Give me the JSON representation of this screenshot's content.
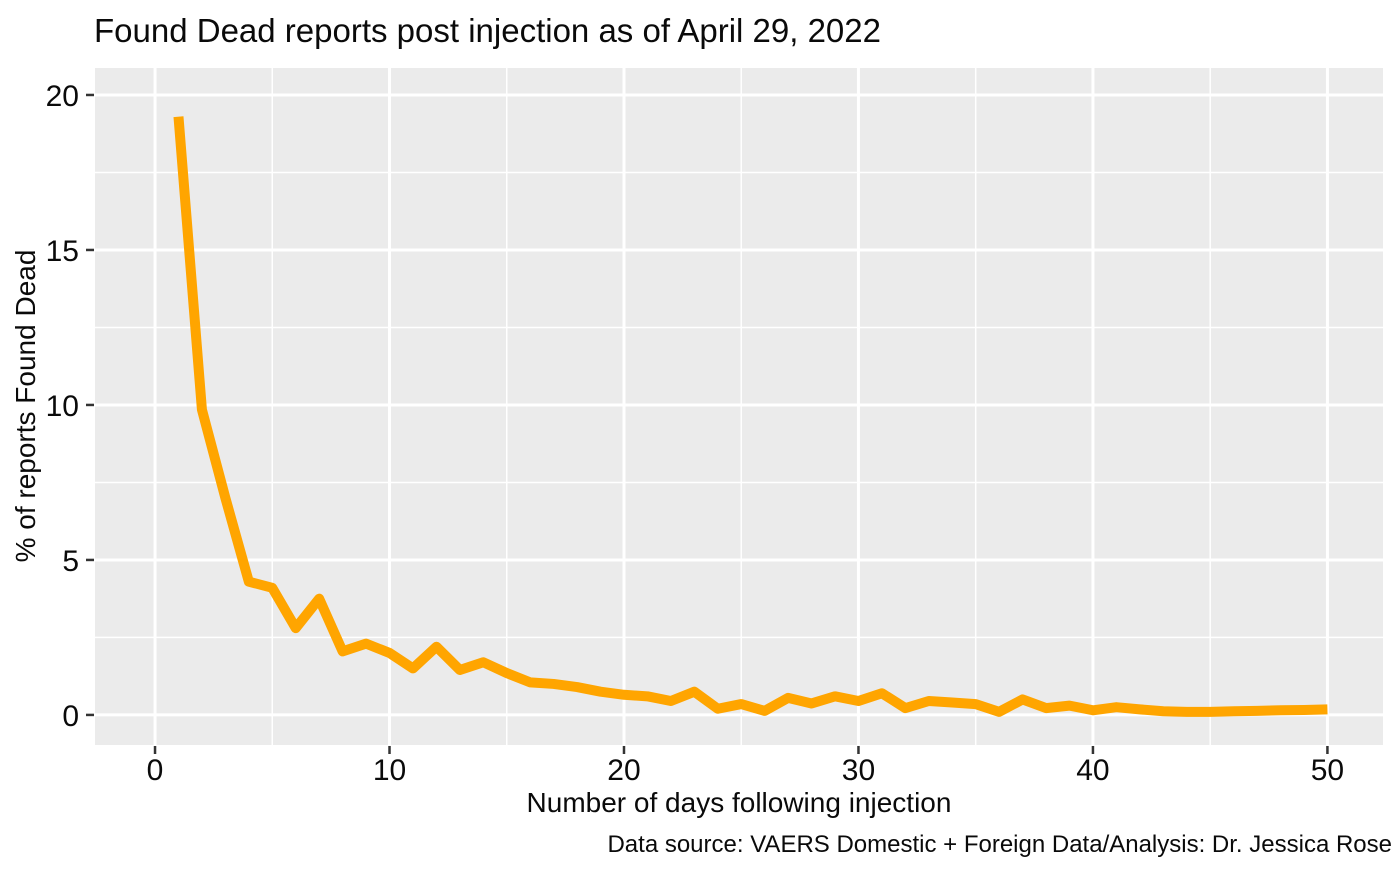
{
  "chart_data": {
    "type": "line",
    "title": "Found Dead reports post injection as of April 29, 2022",
    "xlabel": "Number of days following injection",
    "ylabel": "% of reports Found Dead",
    "caption": "Data source: VAERS Domestic + Foreign Data/Analysis: Dr. Jessica Rose",
    "x": [
      1,
      2,
      3,
      4,
      5,
      6,
      7,
      8,
      9,
      10,
      11,
      12,
      13,
      14,
      15,
      16,
      17,
      18,
      19,
      20,
      21,
      22,
      23,
      24,
      25,
      26,
      27,
      28,
      29,
      30,
      31,
      32,
      33,
      34,
      35,
      36,
      37,
      38,
      39,
      40,
      41,
      42,
      43,
      44,
      45,
      46,
      47,
      48,
      49,
      50
    ],
    "y": [
      19.3,
      9.85,
      7.0,
      4.3,
      4.1,
      2.8,
      3.75,
      2.05,
      2.3,
      2.0,
      1.5,
      2.2,
      1.45,
      1.7,
      1.35,
      1.05,
      1.0,
      0.9,
      0.75,
      0.65,
      0.6,
      0.45,
      0.75,
      0.2,
      0.35,
      0.13,
      0.55,
      0.37,
      0.6,
      0.45,
      0.7,
      0.22,
      0.45,
      0.4,
      0.35,
      0.1,
      0.5,
      0.22,
      0.3,
      0.15,
      0.25,
      0.18,
      0.12,
      0.1,
      0.1,
      0.12,
      0.13,
      0.15,
      0.16,
      0.18
    ],
    "xlim": [
      -2.56,
      52.37
    ],
    "ylim": [
      -0.97,
      20.87
    ],
    "x_ticks": {
      "values": [
        0,
        10,
        20,
        30,
        40,
        50
      ],
      "labels": [
        "0",
        "10",
        "20",
        "30",
        "40",
        "50"
      ]
    },
    "y_ticks": {
      "values": [
        0,
        5,
        10,
        15,
        20
      ],
      "labels": [
        "0",
        "5",
        "10",
        "15",
        "20"
      ]
    },
    "x_minor_ticks": [
      5,
      15,
      25,
      35,
      45
    ],
    "y_minor_ticks": [
      2.5,
      7.5,
      12.5,
      17.5
    ],
    "grid": "major+minor",
    "legend": "none",
    "style": {
      "line_color": "#FFA500",
      "line_width": 10,
      "panel_bg": "#EBEBEB",
      "grid_color": "#FFFFFF",
      "page_bg": "#FFFFFF",
      "text_color": "#0a0a0a",
      "tick_mark_color": "#333333",
      "tick_label_size": 30
    }
  }
}
